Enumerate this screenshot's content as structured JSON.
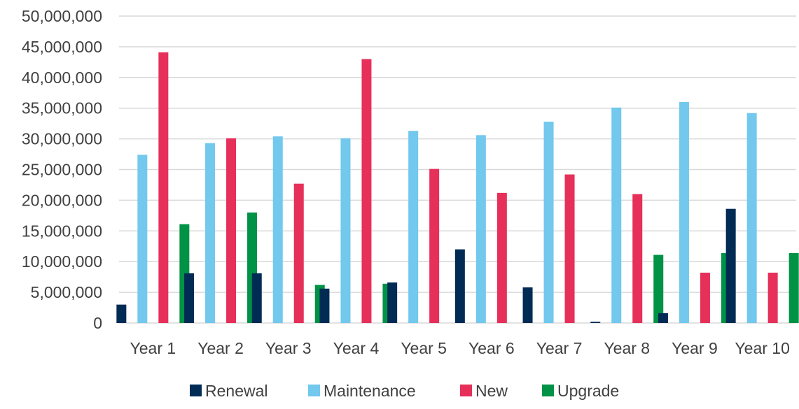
{
  "chart_data": {
    "type": "bar",
    "categories": [
      "Year 1",
      "Year 2",
      "Year 3",
      "Year 4",
      "Year 5",
      "Year 6",
      "Year 7",
      "Year 8",
      "Year 9",
      "Year 10"
    ],
    "series": [
      {
        "name": "Renewal",
        "color": "#002b55",
        "values": [
          3000000,
          8100000,
          8100000,
          5600000,
          6600000,
          12000000,
          5800000,
          200000,
          1600000,
          18600000
        ]
      },
      {
        "name": "Maintenance",
        "color": "#72c8ed",
        "values": [
          27400000,
          29300000,
          30400000,
          30100000,
          31300000,
          30600000,
          32800000,
          35100000,
          36000000,
          34200000
        ]
      },
      {
        "name": "New",
        "color": "#e6305a",
        "values": [
          44100000,
          30100000,
          22700000,
          43000000,
          25100000,
          21200000,
          24200000,
          21000000,
          8200000,
          8200000
        ]
      },
      {
        "name": "Upgrade",
        "color": "#009245",
        "values": [
          16100000,
          18000000,
          6200000,
          6400000,
          0,
          0,
          0,
          11100000,
          11400000,
          11400000
        ]
      }
    ],
    "yticks": [
      "0",
      "5,000,000",
      "10,000,000",
      "15,000,000",
      "20,000,000",
      "25,000,000",
      "30,000,000",
      "35,000,000",
      "40,000,000",
      "45,000,000",
      "50,000,000"
    ],
    "ylim": [
      0,
      50000000
    ],
    "grid": true,
    "legend_position": "bottom"
  }
}
